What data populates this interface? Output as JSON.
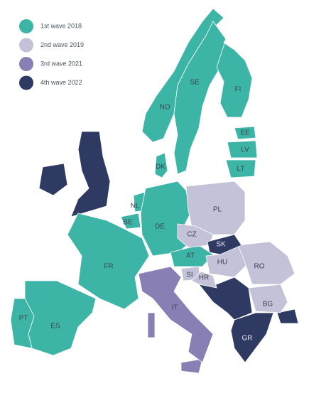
{
  "legend": [
    {
      "label": "1st wave 2018",
      "color": "#3db5a6",
      "countries": [
        "SE",
        "NO",
        "FI",
        "EE",
        "LV",
        "LT",
        "DK",
        "NL",
        "BE",
        "DE",
        "FR",
        "ES",
        "PT",
        "AT"
      ]
    },
    {
      "label": "2nd wave 2019",
      "color": "#c4c2d8",
      "countries": [
        "PL",
        "CZ",
        "HU",
        "RO",
        "SI",
        "HR",
        "BG"
      ]
    },
    {
      "label": "3rd wave 2021",
      "color": "#8880b4",
      "countries": [
        "IT"
      ]
    },
    {
      "label": "4th wave 2022",
      "color": "#2f3a63",
      "countries": [
        "SK",
        "GR"
      ]
    }
  ]
}
